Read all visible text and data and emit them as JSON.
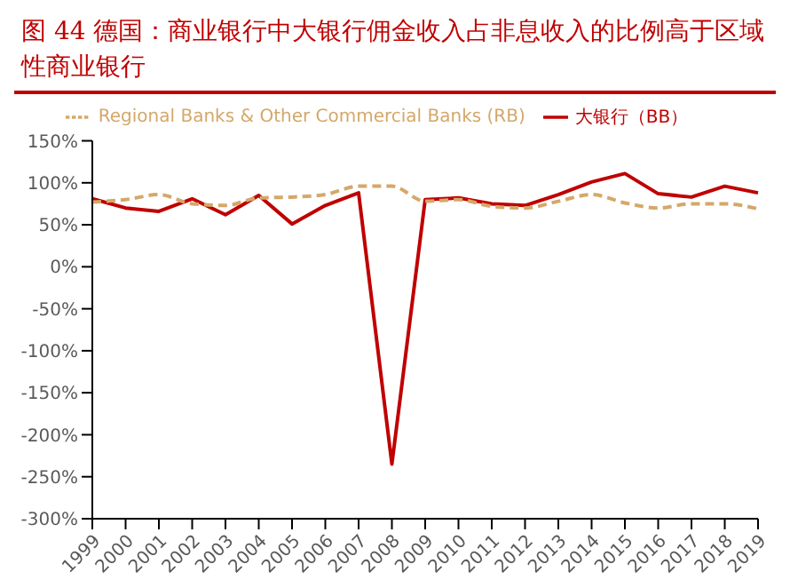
{
  "chart_data": {
    "type": "line",
    "title": "图 44   德国：商业银行中大银行佣金收入占非息收入的比例高于区域性商业银行",
    "categories": [
      "1999",
      "2000",
      "2001",
      "2002",
      "2003",
      "2004",
      "2005",
      "2006",
      "2007",
      "2008",
      "2009",
      "2010",
      "2011",
      "2012",
      "2013",
      "2014",
      "2015",
      "2016",
      "2017",
      "2018",
      "2019"
    ],
    "series": [
      {
        "name": "大银行（BB）",
        "color": "#c00000",
        "line_style": "solid",
        "values": [
          81,
          70,
          66,
          81,
          62,
          85,
          51,
          73,
          88,
          -235,
          80,
          82,
          75,
          73,
          86,
          101,
          111,
          87,
          83,
          96,
          88
        ]
      },
      {
        "name": "Regional Banks & Other Commercial Banks (RB)",
        "color": "#d4a86a",
        "line_style": "dashed",
        "values": [
          77,
          80,
          86,
          75,
          73,
          82,
          83,
          86,
          96,
          96,
          78,
          80,
          72,
          70,
          78,
          86,
          76,
          70,
          75,
          75,
          69
        ]
      }
    ],
    "ylim": [
      -300,
      150
    ],
    "yticks": [
      {
        "value": -300,
        "label": "-300%"
      },
      {
        "value": -250,
        "label": "-250%"
      },
      {
        "value": -200,
        "label": "-200%"
      },
      {
        "value": -150,
        "label": "-150%"
      },
      {
        "value": -100,
        "label": "-100%"
      },
      {
        "value": -50,
        "label": "-50%"
      },
      {
        "value": 0,
        "label": "0%"
      },
      {
        "value": 50,
        "label": "50%"
      },
      {
        "value": 100,
        "label": "100%"
      },
      {
        "value": 150,
        "label": "150%"
      }
    ],
    "grid": false,
    "legend": "top",
    "marker": "none"
  }
}
